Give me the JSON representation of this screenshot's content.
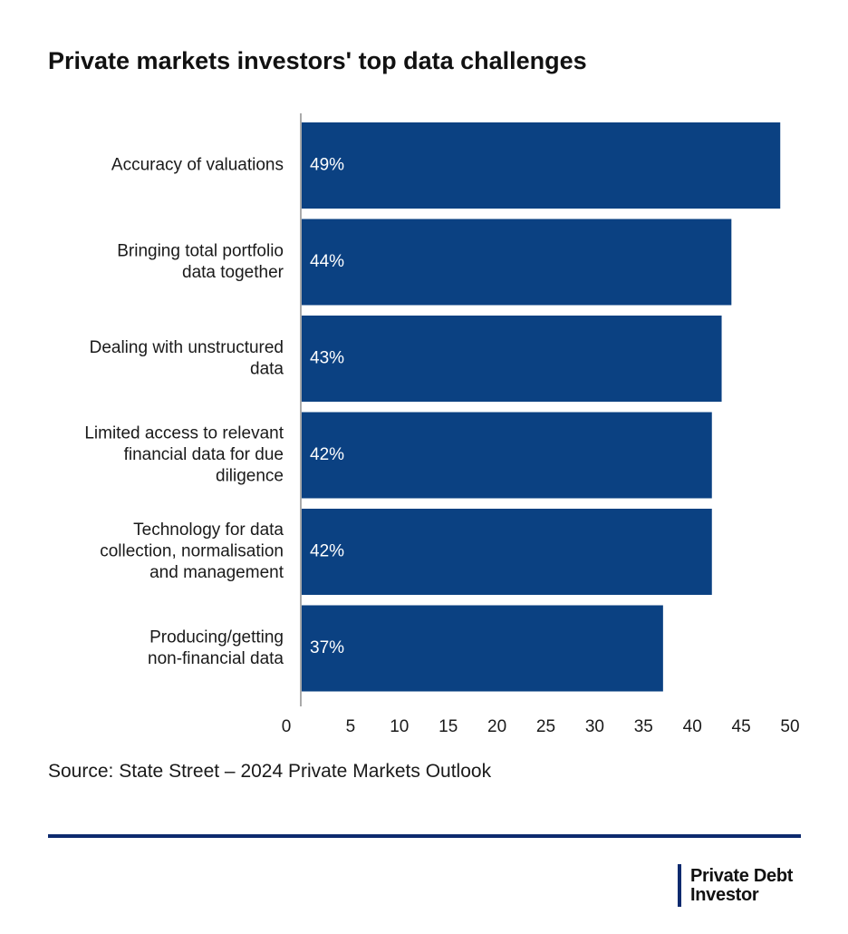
{
  "colors": {
    "bar": "#0b4182",
    "brand_accent": "#0d2a6e",
    "axis": "#8e8e8e",
    "text": "#1a1a1a",
    "bar_label": "#ffffff"
  },
  "footer": {
    "source": "Source: State Street – 2024 Private Markets Outlook",
    "brand_line1": "Private Debt",
    "brand_line2": "Investor"
  },
  "chart_data": {
    "type": "bar",
    "orientation": "horizontal",
    "title": "Private markets investors' top data challenges",
    "categories": [
      [
        "Accuracy of valuations"
      ],
      [
        "Bringing total portfolio",
        "data together"
      ],
      [
        "Dealing with unstructured",
        "data"
      ],
      [
        "Limited access to relevant",
        "financial data for due",
        "diligence"
      ],
      [
        "Technology for data",
        "collection, normalisation",
        "and management"
      ],
      [
        "Producing/getting",
        "non-financial data"
      ]
    ],
    "values": [
      49,
      44,
      43,
      42,
      42,
      37
    ],
    "value_labels": [
      "49%",
      "44%",
      "43%",
      "42%",
      "42%",
      "37%"
    ],
    "xlim": [
      0,
      50
    ],
    "xticks": [
      "0",
      "5",
      "10",
      "15",
      "20",
      "25",
      "30",
      "35",
      "40",
      "45",
      "50"
    ],
    "xlabel": "",
    "ylabel": "",
    "grid": false,
    "legend": "none"
  }
}
